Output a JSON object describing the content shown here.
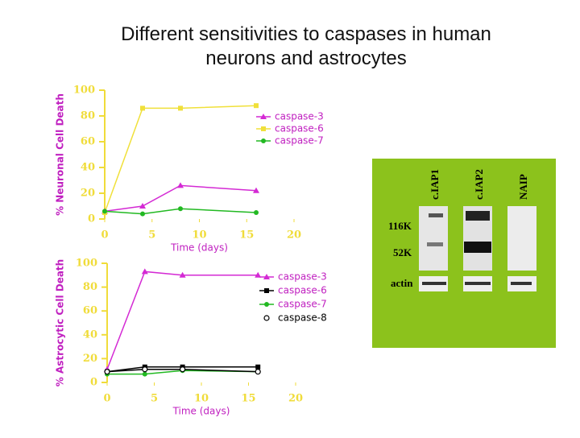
{
  "title": "Different sensitivities to caspases in human neurons and astrocytes",
  "chart_data": [
    {
      "type": "line",
      "ylabel": "% Neuronal Cell Death",
      "xlabel": "Time (days)",
      "xlim": [
        0,
        20
      ],
      "ylim": [
        0,
        100
      ],
      "xticks": [
        0,
        5,
        10,
        15,
        20
      ],
      "yticks": [
        0,
        20,
        40,
        60,
        80,
        100
      ],
      "axis_color": "#f0dc3a",
      "legend": "right",
      "x": [
        0,
        4,
        8,
        16
      ],
      "series": [
        {
          "name": "caspase-3",
          "color": "#d42ad4",
          "marker": "triangle",
          "values": [
            6,
            10,
            26,
            22
          ]
        },
        {
          "name": "caspase-6",
          "color": "#f0e03a",
          "marker": "square",
          "values": [
            5,
            86,
            86,
            88
          ]
        },
        {
          "name": "caspase-7",
          "color": "#22b922",
          "marker": "circle",
          "values": [
            6,
            4,
            8,
            5
          ]
        }
      ]
    },
    {
      "type": "line",
      "ylabel": "% Astrocytic Cell Death",
      "xlabel": "Time (days)",
      "xlim": [
        0,
        20
      ],
      "ylim": [
        0,
        100
      ],
      "xticks": [
        0,
        5,
        10,
        15,
        20
      ],
      "yticks": [
        0,
        20,
        40,
        60,
        80,
        100
      ],
      "axis_color": "#f0dc3a",
      "legend": "right",
      "x": [
        0,
        4,
        8,
        16
      ],
      "series": [
        {
          "name": "caspase-3",
          "color": "#d42ad4",
          "marker": "triangle",
          "values": [
            11,
            93,
            90,
            90
          ]
        },
        {
          "name": "caspase-6",
          "color": "#000000",
          "marker": "square",
          "values": [
            9,
            13,
            13,
            13
          ]
        },
        {
          "name": "caspase-7",
          "color": "#22b922",
          "marker": "circle",
          "values": [
            7,
            7,
            10,
            9
          ]
        },
        {
          "name": "caspase-8",
          "color": "#000000",
          "marker": "open-circle",
          "values": [
            9,
            11,
            11,
            9
          ]
        }
      ]
    }
  ],
  "blot": {
    "lanes": [
      "c.IAP1",
      "c.IAP2",
      "NAIP"
    ],
    "markers": [
      "116K",
      "52K"
    ],
    "loading": "actin"
  }
}
